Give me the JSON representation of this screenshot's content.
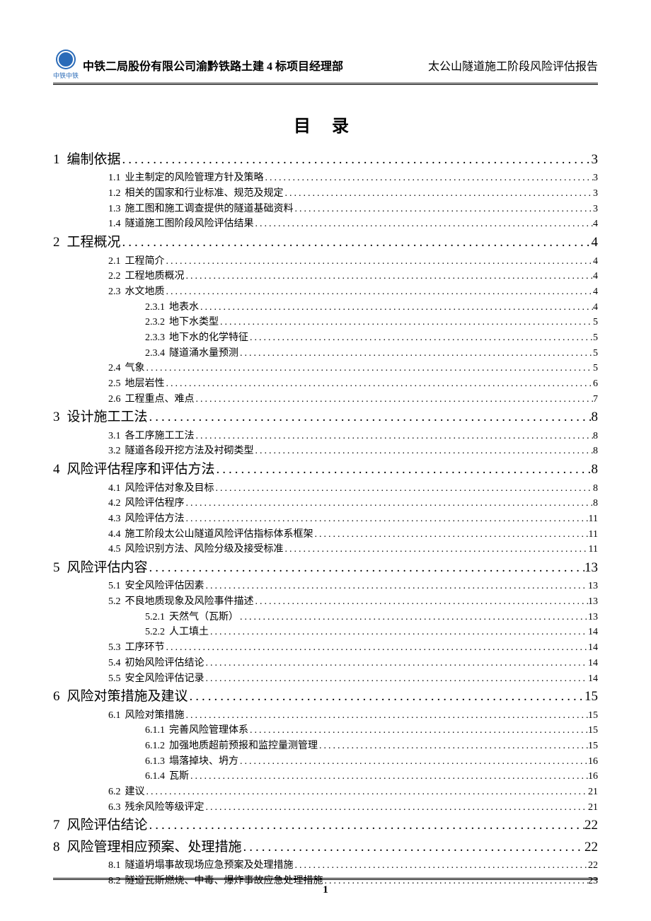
{
  "header": {
    "logo_sub": "中铁中铁",
    "left": "中铁二局股份有限公司渝黔铁路土建 4 标项目经理部",
    "right": "太公山隧道施工阶段风险评估报告"
  },
  "toc_title": "目 录",
  "toc": [
    {
      "level": 1,
      "num": "1",
      "label": "编制依据",
      "page": "3"
    },
    {
      "level": 2,
      "num": "1.1",
      "label": "业主制定的风险管理方针及策略",
      "page": "3"
    },
    {
      "level": 2,
      "num": "1.2",
      "label": "相关的国家和行业标准、规范及规定",
      "page": "3"
    },
    {
      "level": 2,
      "num": "1.3",
      "label": "施工图和施工调查提供的隧道基础资料",
      "page": "3"
    },
    {
      "level": 2,
      "num": "1.4",
      "label": "隧道施工图阶段风险评估结果",
      "page": "4"
    },
    {
      "level": 1,
      "num": "2",
      "label": "工程概况",
      "page": "4"
    },
    {
      "level": 2,
      "num": "2.1",
      "label": "工程简介",
      "page": "4"
    },
    {
      "level": 2,
      "num": "2.2",
      "label": "工程地质概况",
      "page": "4"
    },
    {
      "level": 2,
      "num": "2.3",
      "label": "水文地质",
      "page": "4"
    },
    {
      "level": 3,
      "num": "2.3.1",
      "label": "地表水",
      "page": "4"
    },
    {
      "level": 3,
      "num": "2.3.2",
      "label": "地下水类型",
      "page": "5"
    },
    {
      "level": 3,
      "num": "2.3.3",
      "label": "地下水的化学特征",
      "page": "5"
    },
    {
      "level": 3,
      "num": "2.3.4",
      "label": "隧道涌水量预测",
      "page": "5"
    },
    {
      "level": 2,
      "num": "2.4",
      "label": "气象",
      "page": "5"
    },
    {
      "level": 2,
      "num": "2.5",
      "label": "地层岩性",
      "page": "6"
    },
    {
      "level": 2,
      "num": "2.6",
      "label": "工程重点、难点",
      "page": "7"
    },
    {
      "level": 1,
      "num": "3",
      "label": "设计施工工法",
      "page": "8"
    },
    {
      "level": 2,
      "num": "3.1",
      "label": "各工序施工工法",
      "page": "8"
    },
    {
      "level": 2,
      "num": "3.2",
      "label": "隧道各段开挖方法及衬砌类型",
      "page": "8"
    },
    {
      "level": 1,
      "num": "4",
      "label": "风险评估程序和评估方法",
      "page": "8"
    },
    {
      "level": 2,
      "num": "4.1",
      "label": "风险评估对象及目标",
      "page": "8"
    },
    {
      "level": 2,
      "num": "4.2",
      "label": "风险评估程序",
      "page": "8"
    },
    {
      "level": 2,
      "num": "4.3",
      "label": "风险评估方法",
      "page": "11"
    },
    {
      "level": 2,
      "num": "4.4",
      "label": "施工阶段太公山隧道风险评估指标体系框架",
      "page": "11"
    },
    {
      "level": 2,
      "num": "4.5",
      "label": "风险识别方法、风险分级及接受标准",
      "page": "11"
    },
    {
      "level": 1,
      "num": "5",
      "label": "风险评估内容",
      "page": "13"
    },
    {
      "level": 2,
      "num": "5.1",
      "label": "安全风险评估因素",
      "page": "13"
    },
    {
      "level": 2,
      "num": "5.2",
      "label": "不良地质现象及风险事件描述",
      "page": "13"
    },
    {
      "level": 3,
      "num": "5.2.1",
      "label": "天然气（瓦斯）",
      "page": "13"
    },
    {
      "level": 3,
      "num": "5.2.2",
      "label": "人工填土",
      "page": "14"
    },
    {
      "level": 2,
      "num": "5.3",
      "label": "工序环节",
      "page": "14"
    },
    {
      "level": 2,
      "num": "5.4",
      "label": "初始风险评估结论",
      "page": "14"
    },
    {
      "level": 2,
      "num": "5.5",
      "label": "安全风险评估记录",
      "page": "14"
    },
    {
      "level": 1,
      "num": "6",
      "label": "风险对策措施及建议",
      "page": "15"
    },
    {
      "level": 2,
      "num": "6.1",
      "label": "风险对策措施",
      "page": "15"
    },
    {
      "level": 3,
      "num": "6.1.1",
      "label": "完善风险管理体系",
      "page": "15"
    },
    {
      "level": 3,
      "num": "6.1.2",
      "label": "加强地质超前预报和监控量测管理",
      "page": "15"
    },
    {
      "level": 3,
      "num": "6.1.3",
      "label": "塌落掉块、坍方",
      "page": "16"
    },
    {
      "level": 3,
      "num": "6.1.4",
      "label": "瓦斯",
      "page": "16"
    },
    {
      "level": 2,
      "num": "6.2",
      "label": "建议",
      "page": "21"
    },
    {
      "level": 2,
      "num": "6.3",
      "label": "残余风险等级评定",
      "page": "21"
    },
    {
      "level": 1,
      "num": "7",
      "label": "风险评估结论",
      "page": "22"
    },
    {
      "level": 1,
      "num": "8",
      "label": "风险管理相应预案、处理措施",
      "page": "22"
    },
    {
      "level": 2,
      "num": "8.1",
      "label": "隧道坍塌事故现场应急预案及处理措施",
      "page": "22"
    },
    {
      "level": 2,
      "num": "8.2",
      "label": "隧道瓦斯燃烧、中毒、爆炸事故应急处理措施",
      "page": "23"
    }
  ],
  "footer_page": "1",
  "leader_dots": "............................................................................................................................................................."
}
